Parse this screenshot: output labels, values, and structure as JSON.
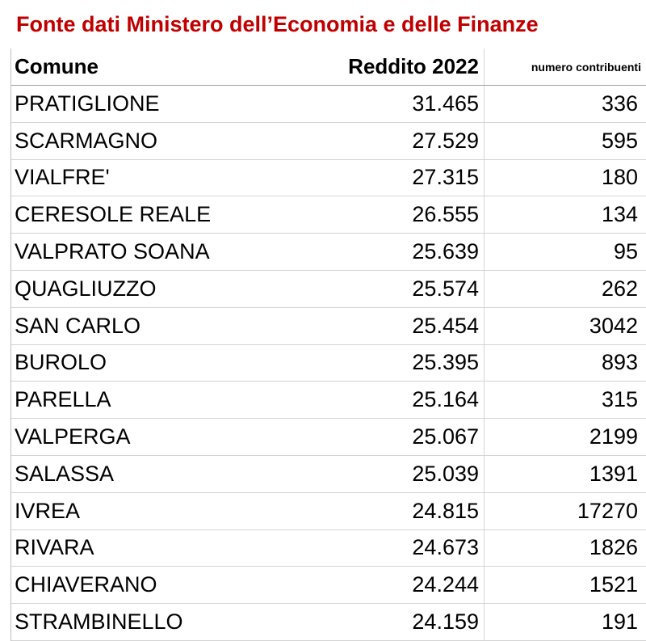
{
  "header": {
    "title": "Fonte dati Ministero dell’Economia e delle Finanze"
  },
  "table": {
    "columns": [
      "Comune",
      "Reddito 2022",
      "numero contribuenti"
    ],
    "rows": [
      [
        "PRATIGLIONE",
        "31.465",
        336
      ],
      [
        "SCARMAGNO",
        "27.529",
        595
      ],
      [
        "VIALFRE'",
        "27.315",
        180
      ],
      [
        "CERESOLE REALE",
        "26.555",
        134
      ],
      [
        "VALPRATO SOANA",
        "25.639",
        95
      ],
      [
        "QUAGLIUZZO",
        "25.574",
        262
      ],
      [
        "SAN CARLO",
        "25.454",
        3042
      ],
      [
        "BUROLO",
        "25.395",
        893
      ],
      [
        "PARELLA",
        "25.164",
        315
      ],
      [
        "VALPERGA",
        "25.067",
        2199
      ],
      [
        "SALASSA",
        "25.039",
        1391
      ],
      [
        "IVREA",
        "24.815",
        17270
      ],
      [
        "RIVARA",
        "24.673",
        1826
      ],
      [
        "CHIAVERANO",
        "24.244",
        1521
      ],
      [
        "STRAMBINELLO",
        "24.159",
        191
      ]
    ]
  }
}
